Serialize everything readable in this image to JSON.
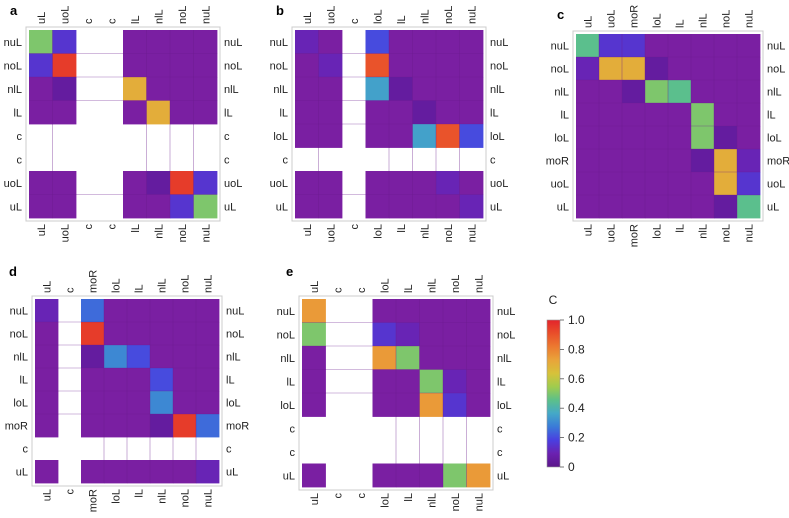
{
  "figure": {
    "colorbar": {
      "title": "C",
      "ticks": [
        "1.0",
        "0.8",
        "0.6",
        "0.4",
        "0.2",
        "0"
      ],
      "tick_values": [
        1.0,
        0.8,
        0.6,
        0.4,
        0.2,
        0.0
      ],
      "colors": [
        "#5b168a",
        "#6b21b0",
        "#4a3fe0",
        "#3a7ad8",
        "#44a8c8",
        "#5cc08a",
        "#9fcc4e",
        "#d6c23a",
        "#e9a43a",
        "#ec7a30",
        "#e94f2a",
        "#e3242b"
      ]
    },
    "colors": {
      "background": "#ffffff",
      "frame": "#cccccc",
      "zero": "#7a1fa2"
    }
  },
  "chart_data": [
    {
      "type": "heatmap",
      "panel_label": "a",
      "cols": [
        "uL",
        "uoL",
        "c",
        "c",
        "lL",
        "nlL",
        "noL",
        "nuL"
      ],
      "rows": [
        "nuL",
        "noL",
        "nlL",
        "lL",
        "c",
        "c",
        "uoL",
        "uL"
      ],
      "blank_rows": [
        4,
        5
      ],
      "blank_cols": [
        2,
        3
      ],
      "values": [
        [
          0.5,
          0.15,
          0,
          0,
          0,
          0,
          0,
          0
        ],
        [
          0.15,
          0.95,
          0,
          0,
          0,
          0,
          0,
          0
        ],
        [
          0,
          0.05,
          0,
          0,
          0.7,
          0,
          0,
          0
        ],
        [
          0,
          0,
          0,
          0,
          0,
          0.7,
          0,
          0
        ],
        [
          0,
          0,
          0,
          0,
          0,
          0,
          0,
          0
        ],
        [
          0,
          0,
          0,
          0,
          0,
          0,
          0,
          0
        ],
        [
          0,
          0,
          0,
          0,
          0,
          0.05,
          0.95,
          0.15
        ],
        [
          0,
          0,
          0,
          0,
          0,
          0,
          0.15,
          0.5
        ]
      ]
    },
    {
      "type": "heatmap",
      "panel_label": "b",
      "cols": [
        "uL",
        "uoL",
        "c",
        "loL",
        "lL",
        "nlL",
        "noL",
        "nuL"
      ],
      "rows": [
        "nuL",
        "noL",
        "nlL",
        "lL",
        "loL",
        "c",
        "uoL",
        "uL"
      ],
      "blank_rows": [
        5
      ],
      "blank_cols": [
        2
      ],
      "values": [
        [
          0.1,
          0,
          0,
          0.2,
          0,
          0,
          0,
          0
        ],
        [
          0,
          0.1,
          0,
          0.9,
          0,
          0,
          0,
          0
        ],
        [
          0,
          0,
          0,
          0.35,
          0.05,
          0,
          0,
          0
        ],
        [
          0,
          0,
          0,
          0,
          0,
          0.05,
          0,
          0
        ],
        [
          0,
          0,
          0,
          0,
          0,
          0.35,
          0.9,
          0.2
        ],
        [
          0,
          0,
          0,
          0,
          0,
          0,
          0,
          0
        ],
        [
          0,
          0,
          0,
          0,
          0,
          0,
          0.1,
          0
        ],
        [
          0,
          0,
          0,
          0,
          0,
          0,
          0,
          0.1
        ]
      ]
    },
    {
      "type": "heatmap",
      "panel_label": "c",
      "cols": [
        "uL",
        "uoL",
        "moR",
        "loL",
        "lL",
        "nlL",
        "noL",
        "nuL"
      ],
      "rows": [
        "nuL",
        "noL",
        "nlL",
        "lL",
        "loL",
        "moR",
        "uoL",
        "uL"
      ],
      "blank_rows": [],
      "blank_cols": [],
      "values": [
        [
          0.45,
          0.15,
          0.15,
          0,
          0,
          0,
          0,
          0
        ],
        [
          0.1,
          0.7,
          0.7,
          0.05,
          0,
          0,
          0,
          0
        ],
        [
          0,
          0,
          0.05,
          0.5,
          0.45,
          0,
          0,
          0
        ],
        [
          0,
          0,
          0,
          0,
          0,
          0.5,
          0,
          0
        ],
        [
          0,
          0,
          0,
          0,
          0,
          0.5,
          0.05,
          0
        ],
        [
          0,
          0,
          0,
          0,
          0,
          0.05,
          0.7,
          0.1
        ],
        [
          0,
          0,
          0,
          0,
          0,
          0,
          0.7,
          0.15
        ],
        [
          0,
          0,
          0,
          0,
          0,
          0,
          0.05,
          0.45
        ]
      ]
    },
    {
      "type": "heatmap",
      "panel_label": "d",
      "cols": [
        "uL",
        "c",
        "moR",
        "loL",
        "lL",
        "nlL",
        "noL",
        "nuL"
      ],
      "rows": [
        "nuL",
        "noL",
        "nlL",
        "lL",
        "loL",
        "moR",
        "c",
        "uL"
      ],
      "blank_rows": [
        6
      ],
      "blank_cols": [
        1
      ],
      "values": [
        [
          0.1,
          0,
          0.25,
          0,
          0,
          0,
          0,
          0
        ],
        [
          0,
          0,
          0.95,
          0,
          0,
          0,
          0,
          0
        ],
        [
          0,
          0,
          0.05,
          0.3,
          0.2,
          0,
          0,
          0
        ],
        [
          0,
          0,
          0,
          0,
          0,
          0.2,
          0,
          0
        ],
        [
          0,
          0,
          0,
          0,
          0,
          0.3,
          0,
          0
        ],
        [
          0,
          0,
          0,
          0,
          0,
          0.05,
          0.95,
          0.25
        ],
        [
          0,
          0,
          0,
          0,
          0,
          0,
          0,
          0
        ],
        [
          0,
          0,
          0,
          0,
          0,
          0,
          0,
          0.1
        ]
      ]
    },
    {
      "type": "heatmap",
      "panel_label": "e",
      "cols": [
        "uL",
        "c",
        "c",
        "loL",
        "lL",
        "nlL",
        "noL",
        "nuL"
      ],
      "rows": [
        "nuL",
        "noL",
        "nlL",
        "lL",
        "loL",
        "c",
        "c",
        "uL"
      ],
      "blank_rows": [
        5,
        6
      ],
      "blank_cols": [
        1,
        2
      ],
      "values": [
        [
          0.75,
          0,
          0,
          0,
          0,
          0,
          0,
          0
        ],
        [
          0.5,
          0,
          0,
          0.15,
          0.1,
          0,
          0,
          0
        ],
        [
          0,
          0,
          0,
          0.75,
          0.5,
          0,
          0,
          0
        ],
        [
          0,
          0,
          0,
          0,
          0,
          0.5,
          0.1,
          0
        ],
        [
          0,
          0,
          0,
          0,
          0,
          0.75,
          0.15,
          0
        ],
        [
          0,
          0,
          0,
          0,
          0,
          0,
          0,
          0
        ],
        [
          0,
          0,
          0,
          0,
          0,
          0,
          0,
          0
        ],
        [
          0,
          0,
          0,
          0,
          0,
          0,
          0.5,
          0.75
        ]
      ]
    }
  ]
}
